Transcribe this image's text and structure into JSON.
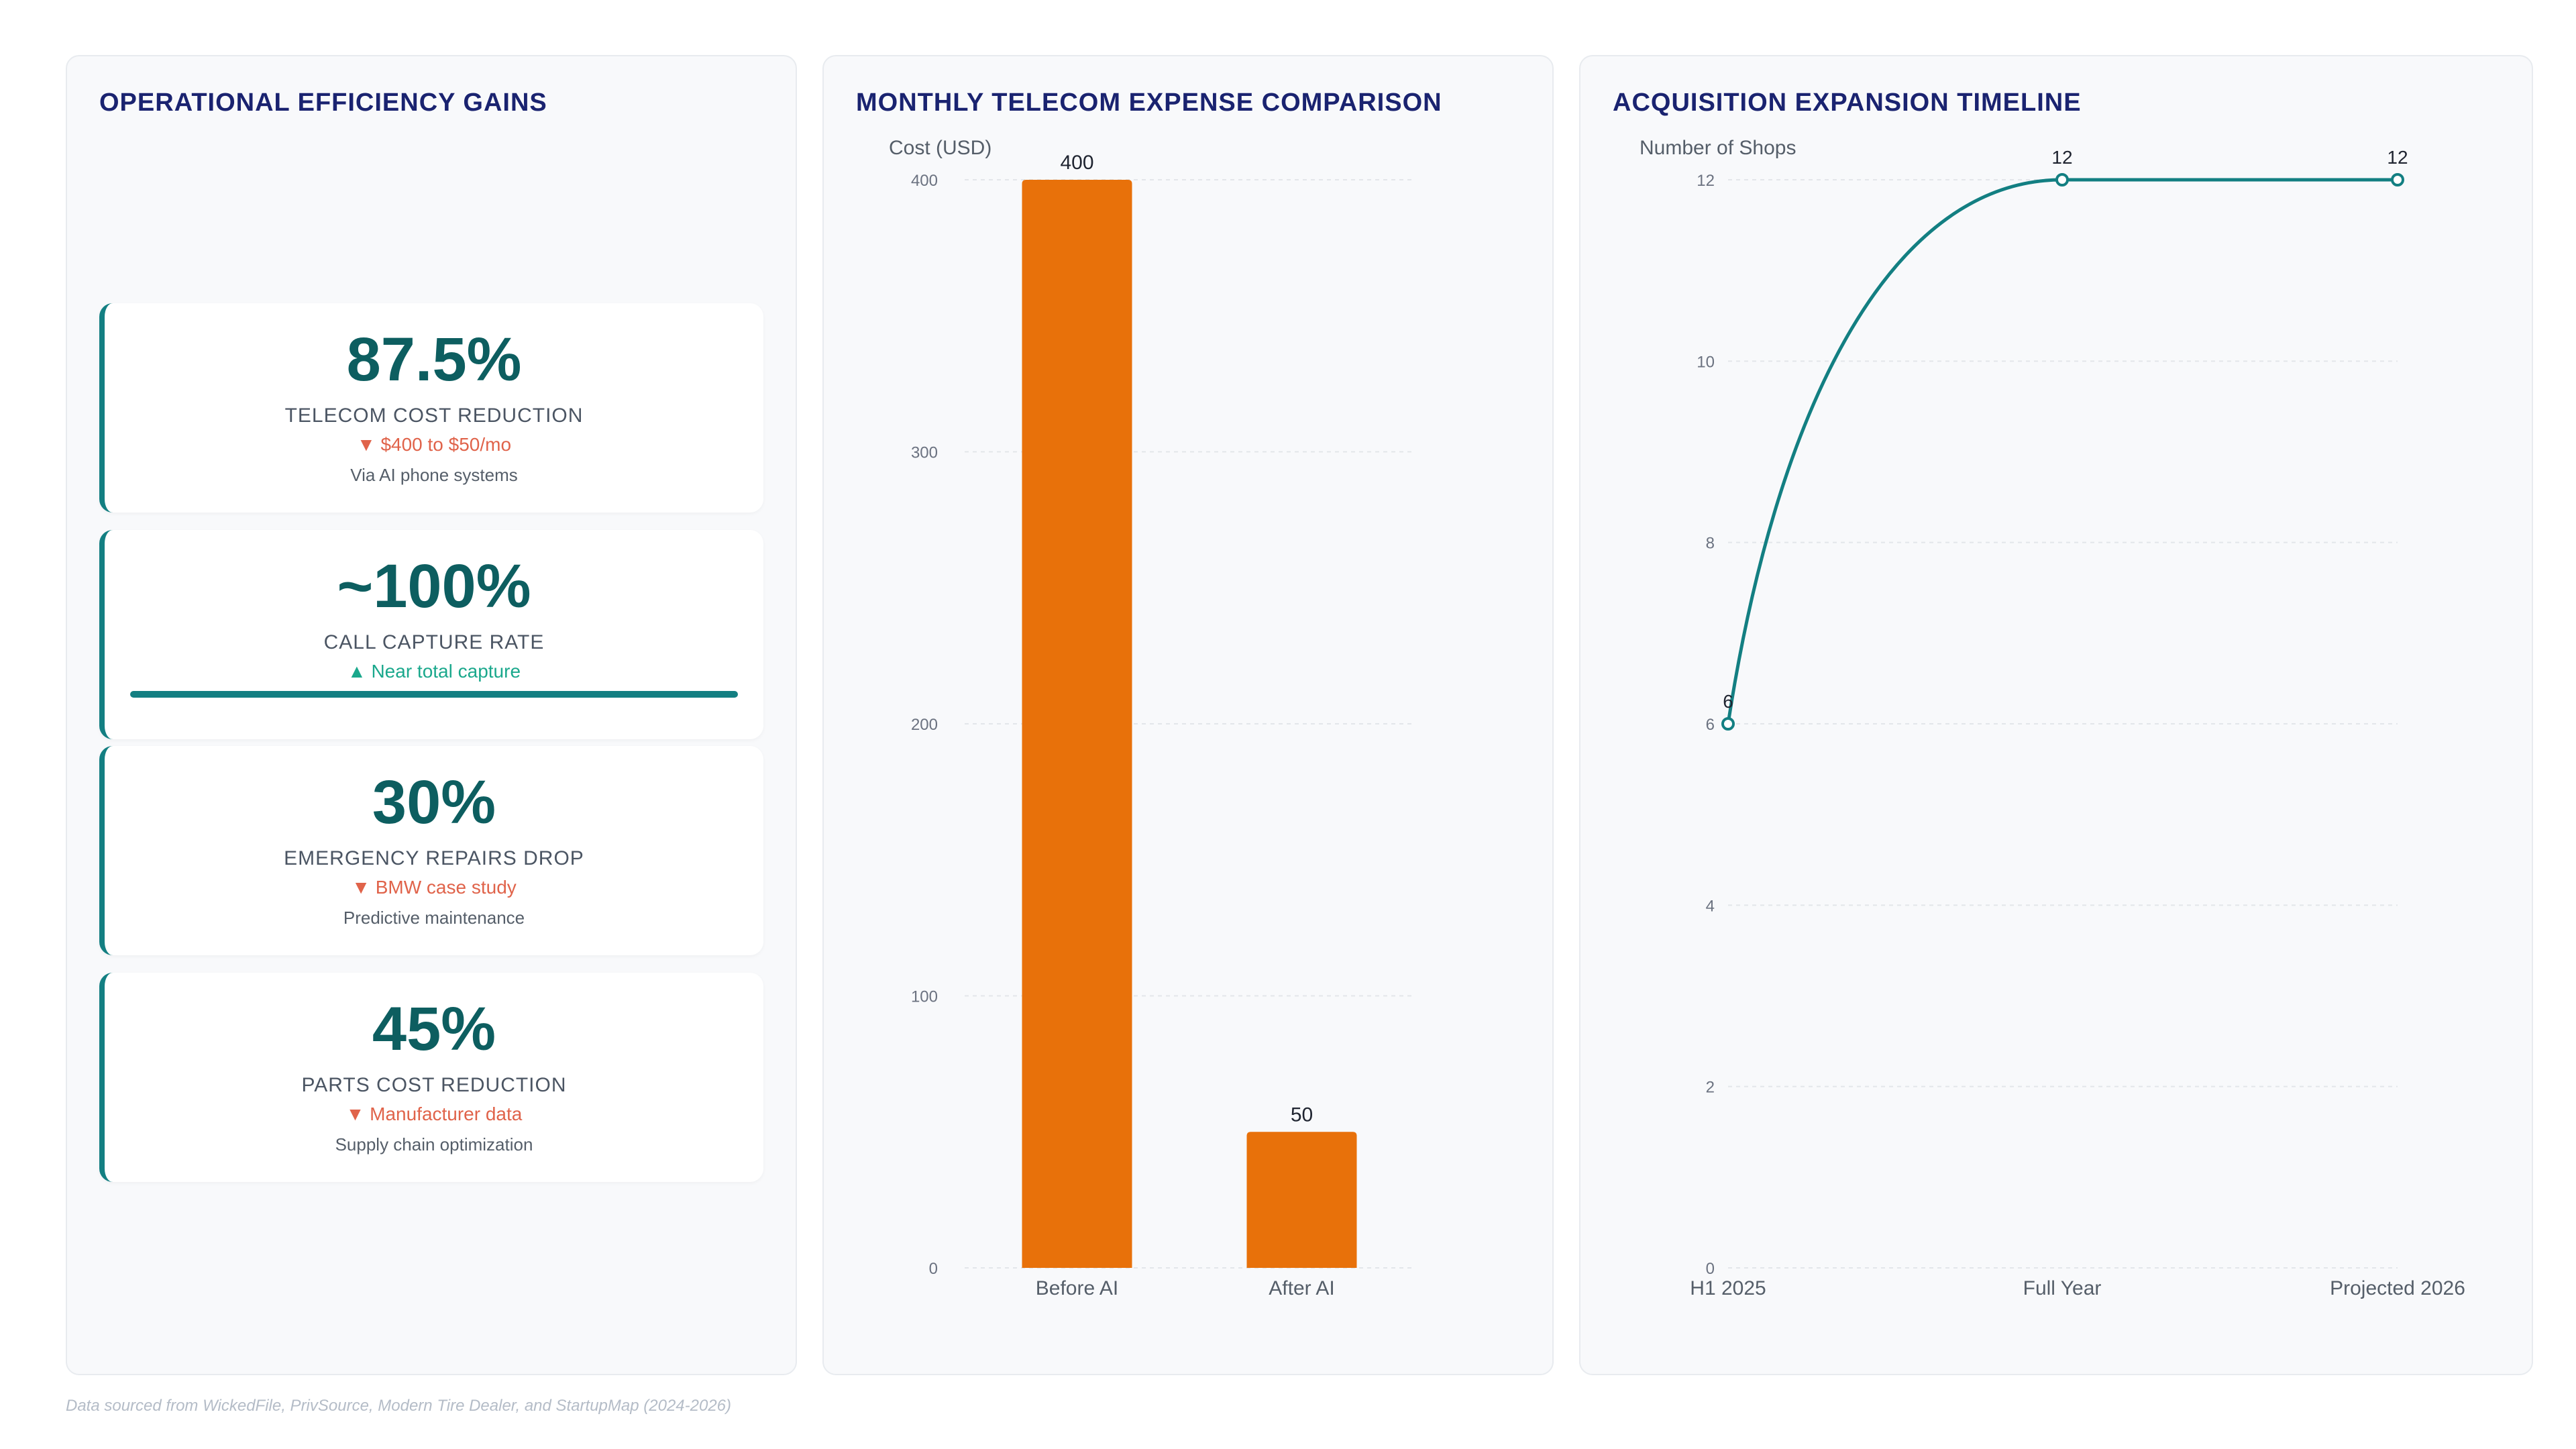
{
  "panels": {
    "left_title": "OPERATIONAL EFFICIENCY GAINS",
    "mid_title": "MONTHLY TELECOM EXPENSE COMPARISON",
    "right_title": "ACQUISITION EXPANSION TIMELINE"
  },
  "kpis": [
    {
      "value": "87.5%",
      "label": "TELECOM COST REDUCTION",
      "change": "▼ $400 to $50/mo",
      "note": "Via AI phone systems"
    },
    {
      "value": "~100%",
      "label": "CALL CAPTURE RATE",
      "change": "▲ Near total capture",
      "progress": 1.0
    },
    {
      "value": "30%",
      "label": "EMERGENCY REPAIRS DROP",
      "change": "▼ BMW case study",
      "note": "Predictive maintenance"
    },
    {
      "value": "45%",
      "label": "PARTS COST REDUCTION",
      "change": "▼ Manufacturer data",
      "note": "Supply chain optimization"
    }
  ],
  "colors": {
    "bar": "#e8710a",
    "line": "#137f82",
    "kpi_accent": "#137f82",
    "down": "#e0634a",
    "up": "#1aa88c"
  },
  "chart_data": [
    {
      "type": "bar",
      "title": "MONTHLY TELECOM EXPENSE COMPARISON",
      "ylabel": "Cost (USD)",
      "xlabel": "",
      "categories": [
        "Before AI",
        "After AI"
      ],
      "values": [
        400,
        50
      ],
      "data_labels": [
        "400",
        "50"
      ],
      "ylim": [
        0,
        400
      ],
      "yticks": [
        0,
        100,
        200,
        300,
        400
      ],
      "ytick_labels": [
        "0",
        "100",
        "200",
        "300",
        "400"
      ],
      "grid": true,
      "legend": "none"
    },
    {
      "type": "line",
      "title": "ACQUISITION EXPANSION TIMELINE",
      "ylabel": "Number of Shops",
      "xlabel": "",
      "categories": [
        "H1 2025",
        "Full Year",
        "Projected 2026"
      ],
      "values": [
        6,
        12,
        12
      ],
      "data_labels": [
        "6",
        "12",
        "12"
      ],
      "ylim": [
        0,
        12
      ],
      "yticks": [
        0,
        2,
        4,
        6,
        8,
        10,
        12
      ],
      "ytick_labels": [
        "0",
        "2",
        "4",
        "6",
        "8",
        "10",
        "12"
      ],
      "grid": true,
      "legend": "none",
      "smooth": true
    }
  ],
  "footer": "Data sourced from WickedFile, PrivSource, Modern Tire Dealer, and StartupMap (2024-2026)"
}
